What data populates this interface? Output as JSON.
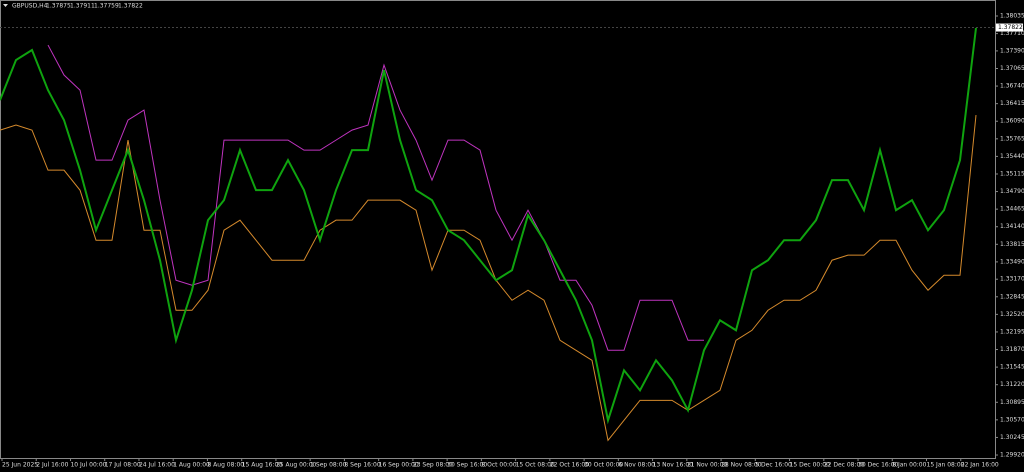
{
  "chart_data": {
    "type": "line",
    "symbol": "GBPUSD,H4",
    "ohlc": [
      1.37875,
      1.37911,
      1.37759,
      1.37822
    ],
    "ylim": [
      1.29865,
      1.38331
    ],
    "yticks": [
      1.38035,
      {
        "value": 1.3771,
        "label": "1.37710"
      },
      {
        "value": 1.3739,
        "label": "1.37390"
      },
      1.37065,
      {
        "value": 1.3674,
        "label": "1.36740"
      },
      1.36415,
      {
        "value": 1.3609,
        "label": "1.36090"
      },
      1.35765,
      {
        "value": 1.3544,
        "label": "1.35440"
      },
      1.35115,
      {
        "value": 1.3479,
        "label": "1.34790"
      },
      1.34465,
      {
        "value": 1.3414,
        "label": "1.34140"
      },
      1.33815,
      {
        "value": 1.3349,
        "label": "1.33490"
      },
      {
        "value": 1.3317,
        "label": "1.33170"
      },
      1.32845,
      {
        "value": 1.3252,
        "label": "1.32520"
      },
      1.32195,
      {
        "value": 1.3187,
        "label": "1.31870"
      },
      1.31545,
      {
        "value": 1.3122,
        "label": "1.31220"
      },
      1.30895,
      {
        "value": 1.3057,
        "label": "1.30570"
      },
      1.30245,
      {
        "value": 1.2992,
        "label": "1.29920"
      }
    ],
    "x_labels": [
      "25 Jun 2025",
      "2 Jul 16:00",
      "10 Jul 00:00",
      "17 Jul 08:00",
      "24 Jul 16:00",
      "1 Aug 00:00",
      "8 Aug 08:00",
      "15 Aug 16:00",
      "25 Aug 00:00",
      "1 Sep 08:00",
      "8 Sep 16:00",
      "16 Sep 00:00",
      "23 Sep 08:00",
      "30 Sep 16:00",
      "8 Oct 00:00",
      "15 Oct 08:00",
      "22 Oct 16:00",
      "30 Oct 00:00",
      "6 Nov 08:00",
      "13 Nov 16:00",
      "21 Nov 00:00",
      "28 Nov 08:00",
      "5 Dec 16:00",
      "15 Dec 00:00",
      "22 Dec 08:00",
      "30 Dec 16:00",
      "8 Jan 00:00",
      "15 Jan 08:00",
      "22 Jan 16:00"
    ],
    "series": [
      {
        "color": "#0fa30f",
        "values": [
          1.36481,
          1.37221,
          1.37406,
          1.36666,
          1.36111,
          1.35186,
          1.34076,
          1.34816,
          1.35556,
          1.34631,
          1.33521,
          1.32041,
          1.32966,
          1.34261,
          1.34631,
          1.35556,
          1.34816,
          1.34816,
          1.35371,
          1.34816,
          1.33891,
          1.34816,
          1.35556,
          1.35556,
          1.37036,
          1.35741,
          1.34816,
          1.34631,
          1.34076,
          1.33891,
          1.33521,
          1.33151,
          1.33336,
          1.34354,
          1.33891,
          1.33336,
          1.32781,
          1.32041,
          1.30561,
          1.31486,
          1.31116,
          1.31671,
          1.31301,
          1.30746,
          1.31856,
          1.32411,
          1.32226,
          1.33336,
          1.33521,
          1.33891,
          1.33891,
          1.34261,
          1.35001,
          1.35001,
          1.34446,
          1.35556,
          1.34446,
          1.34631,
          1.34076,
          1.34446,
          1.35371,
          1.37813
        ]
      },
      {
        "color": "#c034c0",
        "values": [
          null,
          null,
          null,
          1.37498,
          1.36944,
          1.36666,
          1.35371,
          1.35371,
          1.36111,
          1.36296,
          1.34631,
          1.33151,
          1.33058,
          1.33151,
          1.35741,
          1.35741,
          1.35741,
          1.35741,
          1.35741,
          1.35556,
          1.35556,
          1.35741,
          1.35926,
          1.36019,
          1.37129,
          1.36296,
          1.35741,
          1.35001,
          1.35741,
          1.35741,
          1.35556,
          1.34446,
          1.33891,
          1.34446,
          1.33891,
          1.33151,
          1.33151,
          1.32688,
          1.31856,
          1.31856,
          1.32781,
          1.32781,
          1.32781,
          1.32041,
          1.32041,
          null,
          null,
          null,
          null,
          null,
          null,
          null,
          null,
          null,
          null,
          null,
          null,
          null,
          null,
          null,
          null,
          null
        ]
      },
      {
        "color": "#d58a2c",
        "values": [
          1.35926,
          1.36019,
          1.35926,
          1.35186,
          1.35186,
          1.34816,
          1.33891,
          1.33891,
          1.35741,
          1.34076,
          1.34076,
          1.32596,
          1.32596,
          1.32966,
          1.34076,
          1.34261,
          1.33891,
          1.33521,
          1.33521,
          1.33521,
          1.34076,
          1.34261,
          1.34261,
          1.34631,
          1.34631,
          1.34631,
          1.34446,
          1.33336,
          1.34076,
          1.34076,
          1.33891,
          1.33151,
          1.32781,
          1.32966,
          1.32781,
          1.32041,
          1.31856,
          1.31671,
          1.30191,
          1.30561,
          1.30931,
          1.30931,
          1.30931,
          1.30746,
          1.30931,
          1.31116,
          1.32041,
          1.32226,
          1.32596,
          1.32781,
          1.32781,
          1.32966,
          1.33521,
          1.33614,
          1.33614,
          1.33891,
          1.33891,
          1.33336,
          1.32966,
          1.33244,
          1.33244,
          1.36204
        ]
      }
    ]
  }
}
